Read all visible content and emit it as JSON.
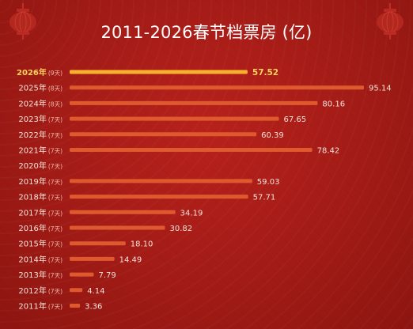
{
  "title": "2011-2026春节档票房 (亿)",
  "colors": {
    "bar": "#de5a2e",
    "highlight_bar": "#f6b02e",
    "highlight_text": "#ffd25c",
    "label": "#f3e3d8",
    "day_note": "#f1b9a9"
  },
  "icons": [
    "lantern-icon"
  ],
  "chart_data": {
    "type": "bar",
    "orientation": "horizontal",
    "title": "2011-2026春节档票房 (亿)",
    "categories": [
      "2026年",
      "2025年",
      "2024年",
      "2023年",
      "2022年",
      "2021年",
      "2020年",
      "2019年",
      "2018年",
      "2017年",
      "2016年",
      "2015年",
      "2014年",
      "2013年",
      "2012年",
      "2011年"
    ],
    "notes": [
      "(9天)",
      "(8天)",
      "(8天)",
      "(7天)",
      "(7天)",
      "(7天)",
      "(7天)",
      "(7天)",
      "(7天)",
      "(7天)",
      "(7天)",
      "(7天)",
      "(7天)",
      "(7天)",
      "(7天)",
      "(7天)"
    ],
    "values": [
      57.52,
      95.14,
      80.16,
      67.65,
      60.39,
      78.42,
      null,
      59.03,
      57.71,
      34.19,
      30.82,
      18.1,
      14.49,
      7.79,
      4.14,
      3.36
    ],
    "value_labels": [
      "57.52",
      "95.14",
      "80.16",
      "67.65",
      "60.39",
      "78.42",
      "",
      "59.03",
      "57.71",
      "34.19",
      "30.82",
      "18.10",
      "14.49",
      "7.79",
      "4.14",
      "3.36"
    ],
    "highlight_index": 0,
    "grid": false,
    "legend": "none"
  }
}
